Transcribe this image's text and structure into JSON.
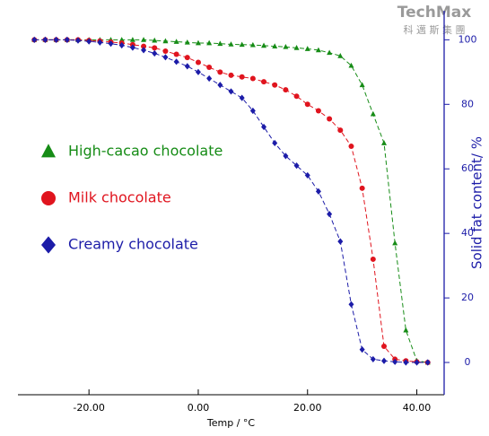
{
  "logo": {
    "name": "TechMax",
    "tagline": "科 邁 斯 集 團"
  },
  "chart_data": {
    "type": "scatter-line",
    "xlabel": "Temp / °C",
    "ylabel": "Solid fat content/ %",
    "x": [
      -30,
      -28,
      -26,
      -24,
      -22,
      -20,
      -18,
      -16,
      -14,
      -12,
      -10,
      -8,
      -6,
      -4,
      -2,
      0,
      2,
      4,
      6,
      8,
      10,
      12,
      14,
      16,
      18,
      20,
      22,
      24,
      26,
      28,
      30,
      32,
      34,
      36,
      38,
      40,
      42
    ],
    "series": [
      {
        "name": "High-cacao chocolate",
        "color": "#168c16",
        "marker": "triangle",
        "values": [
          100,
          100,
          100,
          100,
          100,
          100,
          100,
          100,
          100,
          100,
          100,
          99.8,
          99.6,
          99.4,
          99.2,
          99,
          99,
          98.8,
          98.6,
          98.5,
          98.4,
          98.2,
          98,
          97.8,
          97.5,
          97.2,
          96.8,
          96,
          95,
          92,
          86,
          77,
          68,
          37,
          10,
          0.5,
          0
        ]
      },
      {
        "name": "Milk chocolate",
        "color": "#e0141e",
        "marker": "circle",
        "values": [
          100,
          100,
          100,
          100,
          100,
          99.8,
          99.6,
          99.3,
          99,
          98.5,
          98,
          97.5,
          96.5,
          95.5,
          94.5,
          93,
          91.5,
          90,
          89,
          88.5,
          88,
          87,
          86,
          84.5,
          82.5,
          80,
          78,
          75.5,
          72,
          67,
          54,
          32,
          5,
          1,
          0.5,
          0.2,
          0
        ]
      },
      {
        "name": "Creamy chocolate",
        "color": "#1c1ca8",
        "marker": "diamond",
        "values": [
          100,
          100,
          100,
          100,
          99.8,
          99.5,
          99.2,
          98.8,
          98.3,
          97.6,
          96.8,
          95.8,
          94.6,
          93.2,
          91.8,
          90,
          88,
          86,
          84,
          82,
          78,
          73,
          68,
          64,
          61,
          58,
          53,
          46,
          37.5,
          18,
          4,
          1,
          0.5,
          0.2,
          0,
          0,
          0
        ]
      }
    ],
    "xlim": [
      -33,
      45
    ],
    "ylim": [
      -10,
      109
    ],
    "xticks": [
      {
        "value": -20,
        "label": "-20.00"
      },
      {
        "value": 0,
        "label": "0.00"
      },
      {
        "value": 20,
        "label": "20.00"
      },
      {
        "value": 40,
        "label": "40.00"
      }
    ],
    "yticks": [
      0,
      20,
      40,
      60,
      80,
      100
    ],
    "y_axis_side": "right",
    "y_axis_color": "#1c1ca8",
    "legend": "left"
  }
}
